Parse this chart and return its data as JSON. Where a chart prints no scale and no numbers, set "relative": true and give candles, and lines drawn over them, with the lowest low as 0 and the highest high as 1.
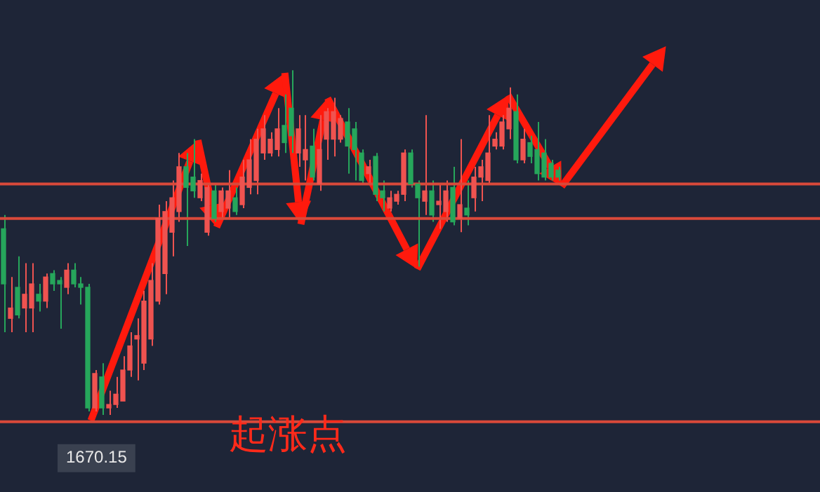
{
  "chart_data": {
    "type": "candlestick",
    "relative": true,
    "categories": [
      null,
      null,
      null,
      null,
      null,
      null,
      null,
      null,
      null,
      null,
      null,
      null,
      null,
      null,
      null,
      null,
      null,
      null,
      null,
      null,
      null,
      null,
      null,
      null,
      null,
      null,
      null,
      null,
      null,
      null,
      null,
      null,
      null,
      null,
      null,
      null,
      null,
      null,
      null,
      null,
      null,
      null,
      null,
      null,
      null,
      null,
      null,
      null,
      null,
      null,
      null,
      null,
      null,
      null,
      null,
      null,
      null,
      null,
      null,
      null,
      null,
      null,
      null,
      null,
      null,
      null,
      null,
      null,
      null,
      null,
      null,
      null,
      null,
      null,
      null,
      null,
      null,
      null,
      null,
      null
    ],
    "ohlc": [
      [
        0.54,
        0.58,
        0.24,
        0.38
      ],
      [
        0.28,
        0.4,
        0.24,
        0.31
      ],
      [
        0.37,
        0.46,
        0.28,
        0.29
      ],
      [
        0.31,
        0.44,
        0.24,
        0.35
      ],
      [
        0.31,
        0.44,
        0.24,
        0.38
      ],
      [
        0.35,
        0.38,
        0.3,
        0.33
      ],
      [
        0.33,
        0.41,
        0.31,
        0.4
      ],
      [
        0.41,
        0.42,
        0.36,
        0.38
      ],
      [
        0.39,
        0.4,
        0.25,
        0.38
      ],
      [
        0.37,
        0.44,
        0.35,
        0.42
      ],
      [
        0.42,
        0.44,
        0.37,
        0.38
      ],
      [
        0.38,
        0.4,
        0.32,
        0.37
      ],
      [
        0.37,
        0.38,
        0.01,
        0.02
      ],
      [
        0.02,
        0.13,
        0.01,
        0.12
      ],
      [
        0.11,
        0.15,
        0,
        0.02
      ],
      [
        0.02,
        0.07,
        0,
        0.03
      ],
      [
        0.03,
        0.11,
        0.02,
        0.06
      ],
      [
        0.04,
        0.17,
        0.04,
        0.13
      ],
      [
        0.13,
        0.24,
        0.11,
        0.2
      ],
      [
        0.22,
        0.28,
        0.1,
        0.23
      ],
      [
        0.15,
        0.36,
        0.13,
        0.33
      ],
      [
        0.22,
        0.44,
        0.2,
        0.39
      ],
      [
        0.33,
        0.61,
        0.32,
        0.57
      ],
      [
        0.41,
        0.62,
        0.35,
        0.59
      ],
      [
        0.53,
        0.68,
        0.46,
        0.63
      ],
      [
        0.59,
        0.76,
        0.56,
        0.72
      ],
      [
        0.72,
        0.76,
        0.49,
        0.66
      ],
      [
        0.69,
        0.8,
        0.63,
        0.65
      ],
      [
        0.63,
        0.7,
        0.62,
        0.68
      ],
      [
        0.53,
        0.67,
        0.52,
        0.66
      ],
      [
        0.65,
        0.67,
        0.56,
        0.57
      ],
      [
        0.59,
        0.66,
        0.57,
        0.65
      ],
      [
        0.6,
        0.71,
        0.57,
        0.65
      ],
      [
        0.63,
        0.66,
        0.58,
        0.59
      ],
      [
        0.61,
        0.74,
        0.6,
        0.69
      ],
      [
        0.66,
        0.8,
        0.64,
        0.74
      ],
      [
        0.68,
        0.83,
        0.64,
        0.8
      ],
      [
        0.76,
        0.87,
        0.74,
        0.83
      ],
      [
        0.76,
        0.82,
        0.75,
        0.8
      ],
      [
        0.77,
        0.89,
        0.75,
        0.83
      ],
      [
        0.84,
        0.93,
        0.76,
        0.79
      ],
      [
        0.89,
        1,
        0.76,
        0.81
      ],
      [
        0.76,
        0.87,
        0.72,
        0.83
      ],
      [
        0.74,
        0.87,
        0.68,
        0.77
      ],
      [
        0.78,
        0.83,
        0.68,
        0.69
      ],
      [
        0.67,
        0.87,
        0.65,
        0.77
      ],
      [
        0.8,
        0.89,
        0.74,
        0.88
      ],
      [
        0.8,
        0.92,
        0.75,
        0.88
      ],
      [
        0.8,
        0.87,
        0.79,
        0.86
      ],
      [
        0.85,
        0.89,
        0.7,
        0.78
      ],
      [
        0.83,
        0.85,
        0.68,
        0.77
      ],
      [
        0.76,
        0.77,
        0.67,
        0.68
      ],
      [
        0.7,
        0.74,
        0.67,
        0.72
      ],
      [
        0.75,
        0.76,
        0.62,
        0.64
      ],
      [
        0.65,
        0.68,
        0.59,
        0.63
      ],
      [
        0.6,
        0.65,
        0.59,
        0.63
      ],
      [
        0.62,
        0.65,
        0.61,
        0.64
      ],
      [
        0.64,
        0.77,
        0.62,
        0.76
      ],
      [
        0.76,
        0.77,
        0.66,
        0.67
      ],
      [
        0.67,
        0.68,
        0.43,
        0.63
      ],
      [
        0.62,
        0.87,
        0.58,
        0.65
      ],
      [
        0.65,
        0.68,
        0.56,
        0.58
      ],
      [
        0.61,
        0.67,
        0.54,
        0.62
      ],
      [
        0.59,
        0.68,
        0.56,
        0.65
      ],
      [
        0.66,
        0.72,
        0.55,
        0.56
      ],
      [
        0.57,
        0.8,
        0.53,
        0.61
      ],
      [
        0.6,
        0.68,
        0.55,
        0.58
      ],
      [
        0.63,
        0.72,
        0.59,
        0.69
      ],
      [
        0.69,
        0.74,
        0.62,
        0.72
      ],
      [
        0.68,
        0.87,
        0.67,
        0.76
      ],
      [
        0.78,
        0.82,
        0.77,
        0.8
      ],
      [
        0.78,
        0.87,
        0.77,
        0.85
      ],
      [
        0.83,
        0.95,
        0.8,
        0.89
      ],
      [
        0.88,
        0.93,
        0.73,
        0.74
      ],
      [
        0.74,
        0.83,
        0.73,
        0.8
      ],
      [
        0.79,
        0.81,
        0.73,
        0.75
      ],
      [
        0.77,
        0.85,
        0.68,
        0.7
      ],
      [
        0.76,
        0.8,
        0.68,
        0.69
      ],
      [
        0.73,
        0.74,
        0.68,
        0.69
      ],
      [
        0.71,
        0.72,
        0.68,
        0.69
      ]
    ],
    "colors": [
      "#26a65b",
      "#ef5350",
      "#26a65b",
      "#ef5350",
      "#ef5350",
      "#26a65b",
      "#ef5350",
      "#26a65b",
      "#26a65b",
      "#ef5350",
      "#26a65b",
      "#26a65b",
      "#26a65b",
      "#ef5350",
      "#26a65b",
      "#ef5350",
      "#ef5350",
      "#ef5350",
      "#ef5350",
      "#ef5350",
      "#ef5350",
      "#ef5350",
      "#ef5350",
      "#ef5350",
      "#ef5350",
      "#ef5350",
      "#26a65b",
      "#26a65b",
      "#ef5350",
      "#ef5350",
      "#26a65b",
      "#ef5350",
      "#ef5350",
      "#26a65b",
      "#ef5350",
      "#ef5350",
      "#ef5350",
      "#ef5350",
      "#ef5350",
      "#ef5350",
      "#26a65b",
      "#26a65b",
      "#ef5350",
      "#ef5350",
      "#26a65b",
      "#ef5350",
      "#ef5350",
      "#ef5350",
      "#ef5350",
      "#26a65b",
      "#26a65b",
      "#26a65b",
      "#ef5350",
      "#26a65b",
      "#26a65b",
      "#ef5350",
      "#ef5350",
      "#ef5350",
      "#26a65b",
      "#26a65b",
      "#ef5350",
      "#26a65b",
      "#ef5350",
      "#ef5350",
      "#26a65b",
      "#ef5350",
      "#26a65b",
      "#ef5350",
      "#ef5350",
      "#ef5350",
      "#ef5350",
      "#ef5350",
      "#ef5350",
      "#26a65b",
      "#ef5350",
      "#26a65b",
      "#26a65b",
      "#26a65b",
      "#26a65b",
      "#26a65b"
    ],
    "ref_lines": [
      {
        "axis": "y",
        "value": 0.67,
        "color": "#d9493a"
      },
      {
        "axis": "y",
        "value": 0.57,
        "color": "#d9493a"
      },
      {
        "axis": "y",
        "value": -0.02,
        "color": "#d9493a"
      }
    ],
    "annotations": [
      "1670.15",
      "起涨点"
    ]
  }
}
